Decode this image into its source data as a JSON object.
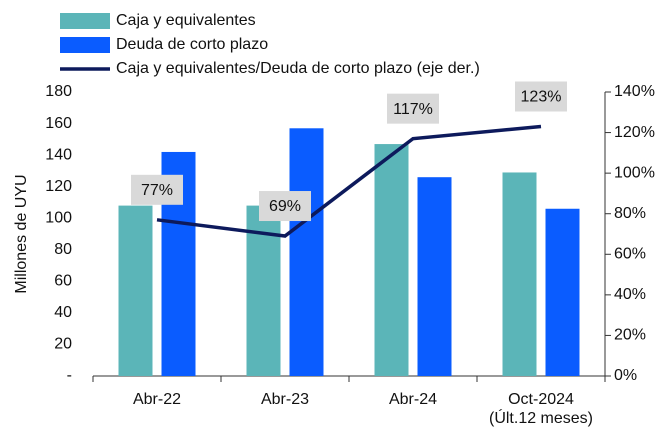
{
  "chart_data": {
    "type": "bar",
    "categories": [
      "Abr-22",
      "Abr-23",
      "Abr-24",
      "Oct-2024\n(Últ.12 meses)"
    ],
    "series": [
      {
        "name": "Caja y equivalentes",
        "type": "bar",
        "color": "#5bb5b8",
        "values": [
          108,
          108,
          147,
          129
        ]
      },
      {
        "name": "Deuda de corto plazo",
        "type": "bar",
        "color": "#0a5cff",
        "values": [
          142,
          157,
          126,
          106
        ]
      },
      {
        "name": "Caja y equivalentes/Deuda de corto plazo (eje der.)",
        "type": "line",
        "axis": "y2",
        "color": "#0d1a5c",
        "values": [
          77,
          69,
          117,
          123
        ],
        "value_labels": [
          "77%",
          "69%",
          "117%",
          "123%"
        ]
      }
    ],
    "y_label": "Millones de UYU",
    "ylim": [
      0,
      180
    ],
    "yticks": [
      {
        "value": 0,
        "label": "-"
      },
      20,
      40,
      60,
      80,
      100,
      120,
      140,
      160,
      180
    ],
    "y2lim": [
      0,
      140
    ],
    "y2ticks": [
      {
        "value": 0,
        "label": "0%"
      },
      {
        "value": 20,
        "label": "20%"
      },
      {
        "value": 40,
        "label": "40%"
      },
      {
        "value": 60,
        "label": "60%"
      },
      {
        "value": 80,
        "label": "80%"
      },
      {
        "value": 100,
        "label": "100%"
      },
      {
        "value": 120,
        "label": "120%"
      },
      {
        "value": 140,
        "label": "140%"
      }
    ],
    "legend": "top-left",
    "grid": false
  }
}
